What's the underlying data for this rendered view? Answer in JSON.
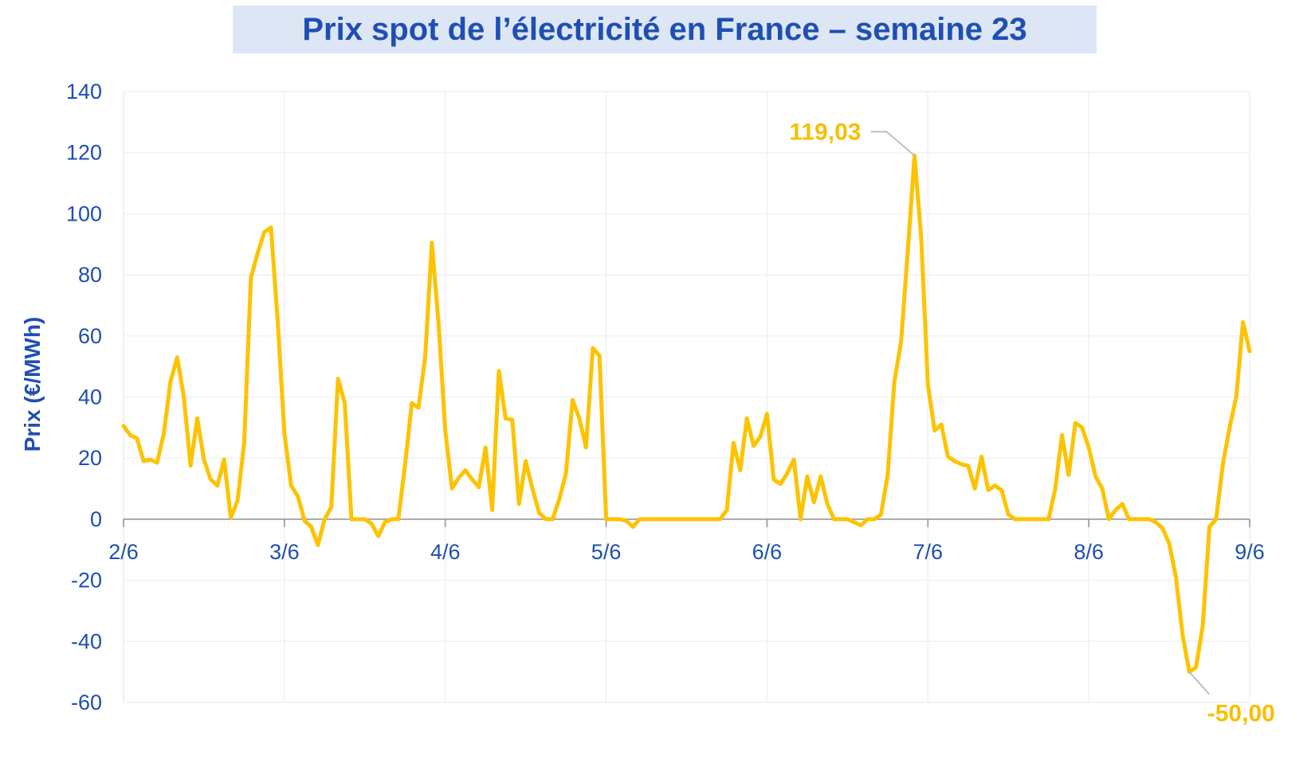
{
  "colors": {
    "line": "#fdc300",
    "text": "#1f4fb3",
    "title_bg": "#dce6f5",
    "grid": "#eef1f6",
    "annotation": "#f5c000",
    "leader": "#bfbfbf"
  },
  "chart_data": {
    "type": "line",
    "title": "Prix spot de l’électricité en France – semaine 23",
    "ylabel": "Prix (€/MWh)",
    "xlabel": "",
    "ylim": [
      -60,
      140
    ],
    "yticks": [
      140,
      120,
      100,
      80,
      60,
      40,
      20,
      0,
      -20,
      -40,
      -60
    ],
    "ytick_labels": [
      "140",
      "120",
      "100",
      "80",
      "60",
      "40",
      "20",
      "0",
      "-20",
      "-40",
      "-60"
    ],
    "xlim": [
      0,
      168
    ],
    "xticks": [
      0,
      24,
      48,
      72,
      96,
      120,
      144,
      168
    ],
    "xtick_labels": [
      "2/6",
      "3/6",
      "4/6",
      "5/6",
      "6/6",
      "7/6",
      "8/6",
      "9/6"
    ],
    "grid": true,
    "legend": "none",
    "series": [
      {
        "points": [
          [
            0,
            30.5
          ],
          [
            1,
            27.5
          ],
          [
            2,
            26.5
          ],
          [
            3,
            19
          ],
          [
            4,
            19.5
          ],
          [
            5,
            18.5
          ],
          [
            6,
            28
          ],
          [
            7,
            45
          ],
          [
            8,
            53
          ],
          [
            9,
            40
          ],
          [
            10,
            17.5
          ],
          [
            11,
            33
          ],
          [
            12,
            19.5
          ],
          [
            13,
            13
          ],
          [
            14,
            11
          ],
          [
            15,
            19.5
          ],
          [
            16,
            0.5
          ],
          [
            17,
            6
          ],
          [
            18,
            25
          ],
          [
            19,
            79
          ],
          [
            20,
            87
          ],
          [
            21,
            94
          ],
          [
            22,
            95.5
          ],
          [
            23,
            65
          ],
          [
            24,
            28
          ],
          [
            25,
            11
          ],
          [
            26,
            7.5
          ],
          [
            27,
            -0.5
          ],
          [
            28,
            -2.5
          ],
          [
            29,
            -8.5
          ],
          [
            30,
            0
          ],
          [
            31,
            4
          ],
          [
            32,
            46
          ],
          [
            33,
            38
          ],
          [
            34,
            0
          ],
          [
            35,
            0
          ],
          [
            36,
            0
          ],
          [
            37,
            -1.5
          ],
          [
            38,
            -5.5
          ],
          [
            39,
            -1
          ],
          [
            40,
            0
          ],
          [
            41,
            0
          ],
          [
            42,
            18
          ],
          [
            43,
            38
          ],
          [
            44,
            36.5
          ],
          [
            45,
            53
          ],
          [
            46,
            90.5
          ],
          [
            47,
            64
          ],
          [
            48,
            29
          ],
          [
            49,
            10
          ],
          [
            50,
            13.5
          ],
          [
            51,
            16
          ],
          [
            52,
            13
          ],
          [
            53,
            10.5
          ],
          [
            54,
            23.5
          ],
          [
            55,
            3
          ],
          [
            56,
            48.5
          ],
          [
            57,
            33
          ],
          [
            58,
            32.5
          ],
          [
            59,
            5
          ],
          [
            60,
            19
          ],
          [
            61,
            10
          ],
          [
            62,
            2
          ],
          [
            63,
            0
          ],
          [
            64,
            0
          ],
          [
            65,
            6.5
          ],
          [
            66,
            15
          ],
          [
            67,
            39
          ],
          [
            68,
            33
          ],
          [
            69,
            23.5
          ],
          [
            70,
            56
          ],
          [
            71,
            53.5
          ],
          [
            72,
            0
          ],
          [
            73,
            0
          ],
          [
            74,
            0
          ],
          [
            75,
            -0.5
          ],
          [
            76,
            -2.5
          ],
          [
            77,
            0
          ],
          [
            78,
            0
          ],
          [
            79,
            0
          ],
          [
            80,
            0
          ],
          [
            81,
            0
          ],
          [
            82,
            0
          ],
          [
            83,
            0
          ],
          [
            84,
            0
          ],
          [
            85,
            0
          ],
          [
            86,
            0
          ],
          [
            87,
            0
          ],
          [
            88,
            0
          ],
          [
            89,
            0
          ],
          [
            90,
            3
          ],
          [
            91,
            25
          ],
          [
            92,
            16
          ],
          [
            93,
            33
          ],
          [
            94,
            24
          ],
          [
            95,
            27
          ],
          [
            96,
            34.5
          ],
          [
            97,
            13
          ],
          [
            98,
            11.5
          ],
          [
            99,
            15
          ],
          [
            100,
            19.5
          ],
          [
            101,
            0
          ],
          [
            102,
            14
          ],
          [
            103,
            5.5
          ],
          [
            104,
            14
          ],
          [
            105,
            5
          ],
          [
            106,
            0
          ],
          [
            107,
            0
          ],
          [
            108,
            0
          ],
          [
            109,
            -1
          ],
          [
            110,
            -2
          ],
          [
            111,
            0
          ],
          [
            112,
            0
          ],
          [
            113,
            1.5
          ],
          [
            114,
            14.5
          ],
          [
            115,
            45
          ],
          [
            116,
            58
          ],
          [
            117,
            88
          ],
          [
            118,
            119.03
          ],
          [
            119,
            92
          ],
          [
            120,
            44
          ],
          [
            121,
            29
          ],
          [
            122,
            31
          ],
          [
            123,
            20.5
          ],
          [
            124,
            19
          ],
          [
            125,
            18
          ],
          [
            126,
            17.5
          ],
          [
            127,
            10
          ],
          [
            128,
            20.5
          ],
          [
            129,
            9.5
          ],
          [
            130,
            11
          ],
          [
            131,
            9.5
          ],
          [
            132,
            1.5
          ],
          [
            133,
            0
          ],
          [
            134,
            0
          ],
          [
            135,
            0
          ],
          [
            136,
            0
          ],
          [
            137,
            0
          ],
          [
            138,
            0
          ],
          [
            139,
            10
          ],
          [
            140,
            27.5
          ],
          [
            141,
            14.5
          ],
          [
            142,
            31.5
          ],
          [
            143,
            30
          ],
          [
            144,
            23.5
          ],
          [
            145,
            14
          ],
          [
            146,
            10
          ],
          [
            147,
            0
          ],
          [
            148,
            3
          ],
          [
            149,
            5
          ],
          [
            150,
            0
          ],
          [
            151,
            0
          ],
          [
            152,
            0
          ],
          [
            153,
            0
          ],
          [
            154,
            -1
          ],
          [
            155,
            -3
          ],
          [
            156,
            -8
          ],
          [
            157,
            -19
          ],
          [
            158,
            -38
          ],
          [
            159,
            -50
          ],
          [
            160,
            -48.5
          ],
          [
            161,
            -35
          ],
          [
            162,
            -2.5
          ],
          [
            163,
            0
          ],
          [
            164,
            18
          ],
          [
            165,
            30
          ],
          [
            166,
            40
          ],
          [
            167,
            64.5
          ],
          [
            168,
            55
          ]
        ]
      }
    ],
    "annotations": [
      {
        "text": "119,03",
        "x": 118,
        "y": 119.03
      },
      {
        "text": "-50,00",
        "x": 159,
        "y": -50
      }
    ]
  }
}
